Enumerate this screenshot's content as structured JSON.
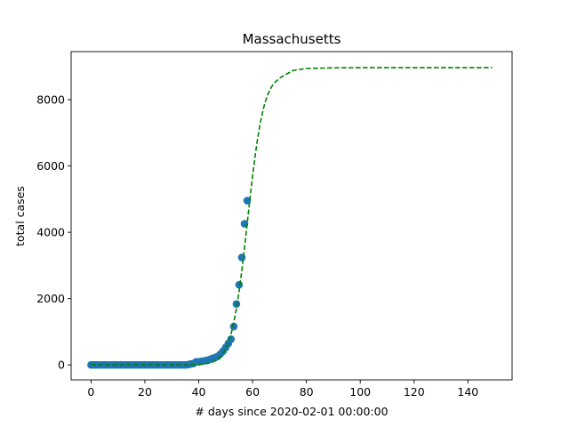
{
  "chart_data": {
    "type": "scatter",
    "title": "Massachusetts",
    "xlabel": "# days since 2020-02-01 00:00:00",
    "ylabel": "total cases",
    "xlim": [
      -7.4,
      156.4
    ],
    "ylim": [
      -450,
      9450
    ],
    "xticks": [
      0,
      20,
      40,
      60,
      80,
      100,
      120,
      140
    ],
    "yticks": [
      0,
      2000,
      4000,
      6000,
      8000
    ],
    "grid": false,
    "legend": "none",
    "colors": {
      "points": "#1f77b4",
      "fit": "#008000",
      "axes": "#000000"
    },
    "series": [
      {
        "kind": "scatter",
        "x": [
          0,
          1,
          2,
          3,
          4,
          5,
          6,
          7,
          8,
          9,
          10,
          11,
          12,
          13,
          14,
          15,
          16,
          17,
          18,
          19,
          20,
          21,
          22,
          23,
          24,
          25,
          26,
          27,
          28,
          29,
          30,
          31,
          32,
          33,
          34,
          35,
          36,
          37,
          38,
          39,
          40,
          41,
          42,
          43,
          44,
          45,
          46,
          47,
          48,
          49,
          50,
          51,
          52,
          53,
          54,
          55,
          56,
          57,
          58
        ],
        "y": [
          1,
          1,
          1,
          1,
          1,
          1,
          1,
          1,
          1,
          1,
          1,
          1,
          1,
          1,
          1,
          1,
          1,
          1,
          1,
          1,
          1,
          1,
          1,
          1,
          1,
          1,
          1,
          1,
          1,
          1,
          1,
          1,
          1,
          2,
          2,
          2,
          8,
          28,
          41,
          92,
          95,
          108,
          123,
          138,
          164,
          197,
          218,
          256,
          328,
          413,
          525,
          646,
          777,
          1159,
          1838,
          2417,
          3240,
          4257,
          4955
        ]
      },
      {
        "kind": "dashed-line",
        "x": [
          0,
          5,
          10,
          15,
          20,
          25,
          30,
          35,
          40,
          42,
          44,
          45,
          46,
          47,
          48,
          49,
          50,
          51,
          52,
          53,
          54,
          55,
          56,
          57,
          58,
          59,
          60,
          61,
          62,
          63,
          64,
          65,
          66,
          67,
          68,
          70,
          75,
          80,
          90,
          100,
          110,
          120,
          130,
          140,
          149
        ],
        "y": [
          0,
          0,
          0,
          0,
          0,
          0,
          1,
          3,
          15,
          30,
          60,
          85,
          120,
          170,
          240,
          340,
          480,
          670,
          930,
          1270,
          1700,
          2220,
          2840,
          3530,
          4260,
          5000,
          5700,
          6340,
          6900,
          7360,
          7730,
          8010,
          8220,
          8380,
          8500,
          8650,
          8880,
          8940,
          8960,
          8965,
          8965,
          8965,
          8965,
          8965,
          8965
        ]
      }
    ]
  }
}
